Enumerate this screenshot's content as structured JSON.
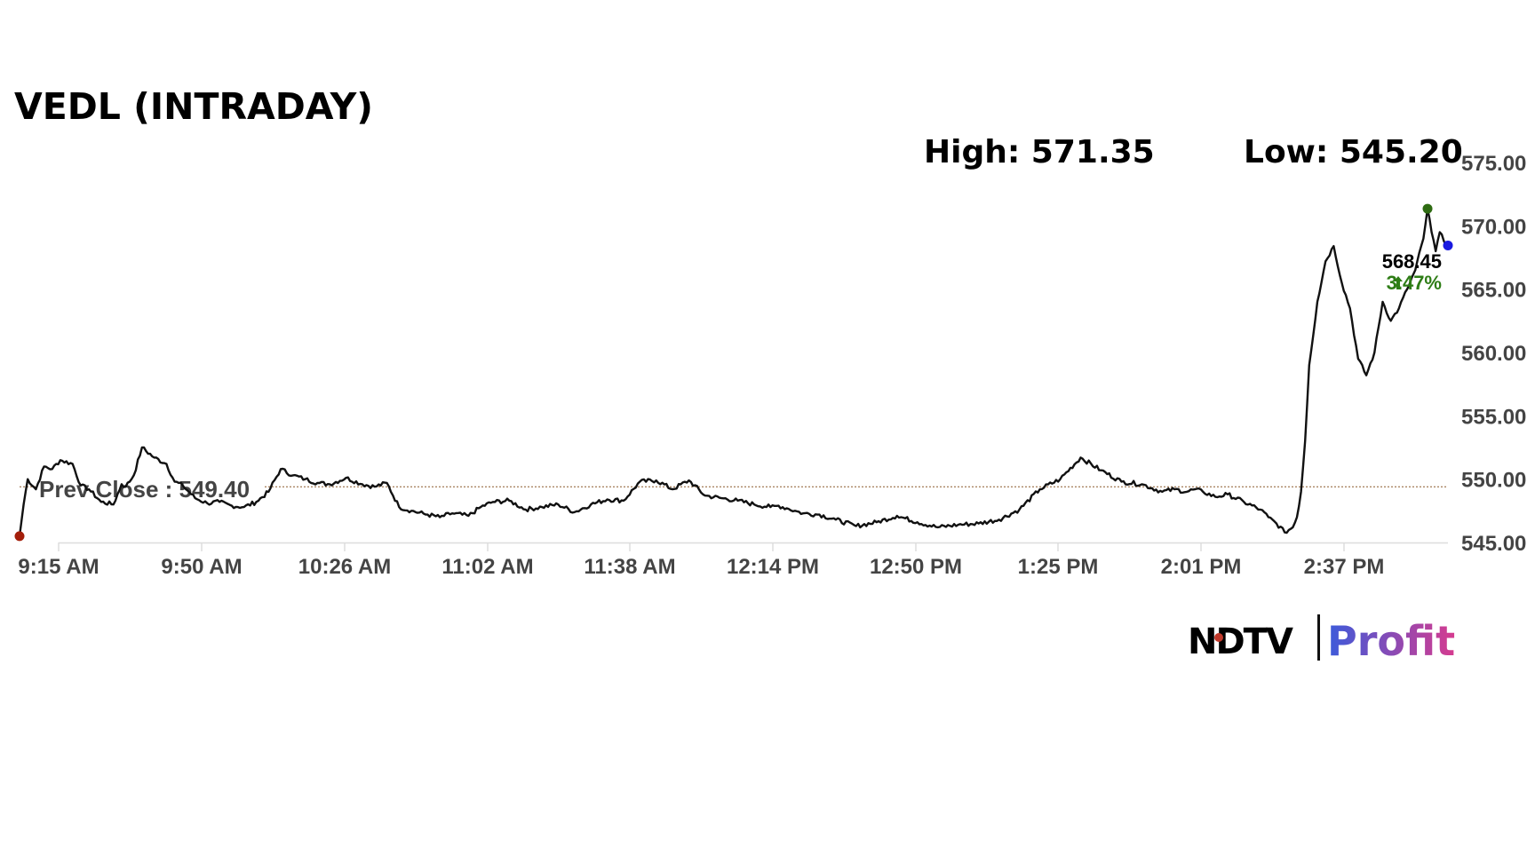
{
  "chart_data": {
    "type": "line",
    "title": "VEDL (INTRADAY)",
    "high_label": "High: 571.35",
    "low_label": "Low: 545.20",
    "high": 571.35,
    "low": 545.2,
    "prev_close": 549.4,
    "prev_close_label": "Prev Close : 549.40",
    "last_price": "568.45",
    "change_pct": "3.47%",
    "ylim": [
      545,
      575
    ],
    "yticks": [
      "545.00",
      "550.00",
      "555.00",
      "560.00",
      "565.00",
      "570.00",
      "575.00"
    ],
    "xticks": [
      "9:15 AM",
      "9:50 AM",
      "10:26 AM",
      "11:02 AM",
      "11:38 AM",
      "12:14 PM",
      "12:50 PM",
      "1:25 PM",
      "2:01 PM",
      "2:37 PM"
    ],
    "xlim_minutes": [
      0,
      350
    ],
    "series": [
      {
        "x": [
          0,
          1,
          2,
          4,
          6,
          8,
          10,
          13,
          15,
          17,
          20,
          23,
          25,
          26,
          28,
          30,
          33,
          36,
          38,
          40,
          43,
          46,
          49,
          52,
          55,
          58,
          61,
          64,
          67,
          70,
          73,
          76,
          80,
          84,
          87,
          90,
          93,
          96,
          100,
          103,
          106,
          110,
          113,
          116,
          120,
          124,
          128,
          132,
          136,
          140,
          144,
          148,
          152,
          156,
          160,
          164,
          168,
          172,
          176,
          180,
          184,
          186,
          188,
          190,
          192,
          196,
          200,
          205,
          210,
          215,
          220,
          225,
          230,
          235,
          240,
          245,
          250,
          255,
          260,
          265,
          270,
          275,
          280,
          283,
          286,
          288,
          290,
          293,
          296,
          300,
          304,
          306,
          308,
          310,
          312,
          313,
          314,
          315,
          316,
          318,
          320,
          322,
          324,
          326,
          328,
          330,
          332,
          334,
          336,
          338,
          340,
          342,
          344,
          345,
          346,
          347,
          348,
          349,
          350
        ],
        "y": [
          545.5,
          548.0,
          550.0,
          549.2,
          551.0,
          550.8,
          551.5,
          551.2,
          549.5,
          549.2,
          548.2,
          548.0,
          549.6,
          549.4,
          550.3,
          552.5,
          551.7,
          551.2,
          549.8,
          549.5,
          548.5,
          548.1,
          548.2,
          547.9,
          547.8,
          548.2,
          549.0,
          550.8,
          550.3,
          550.0,
          549.7,
          549.6,
          550.1,
          549.6,
          549.4,
          549.7,
          547.8,
          547.5,
          547.2,
          547.0,
          547.3,
          547.1,
          547.8,
          548.2,
          548.3,
          547.6,
          547.8,
          548.0,
          547.4,
          548.0,
          548.4,
          548.3,
          549.8,
          549.9,
          549.2,
          549.9,
          548.7,
          548.5,
          548.3,
          548.0,
          547.8,
          547.9,
          547.7,
          547.5,
          547.3,
          547.2,
          546.8,
          546.3,
          546.6,
          547.1,
          546.6,
          546.2,
          546.4,
          546.5,
          546.8,
          547.6,
          549.2,
          550.0,
          551.7,
          550.7,
          549.8,
          549.6,
          549.0,
          549.2,
          549.0,
          549.2,
          549.0,
          548.6,
          548.8,
          548.2,
          547.6,
          547.0,
          546.5,
          545.8,
          546.2,
          547.0,
          549.0,
          553.0,
          559.0,
          564.0,
          567.2,
          568.4,
          565.5,
          563.5,
          559.5,
          558.2,
          560.0,
          564.0,
          562.5,
          563.5,
          565.0,
          566.5,
          569.0,
          571.35,
          569.5,
          568.0,
          569.5,
          568.8,
          568.45
        ]
      }
    ]
  },
  "colors": {
    "line": "#111111",
    "axis": "#dddddd",
    "axis_text": "#444444",
    "prev_close_line": "#8b5a2b",
    "start_marker": "#a31e0a",
    "high_marker": "#2e6b12",
    "end_marker": "#1a1ae0",
    "up": "#2e7d16",
    "profit_from": "#3b5bdb",
    "profit_to": "#d63b8f",
    "ndtv_dot": "#c0392b"
  },
  "logo": {
    "ndtv": "NDTV",
    "profit": "Profit"
  },
  "icons": {
    "change_arrow": "up-arrow-icon"
  }
}
